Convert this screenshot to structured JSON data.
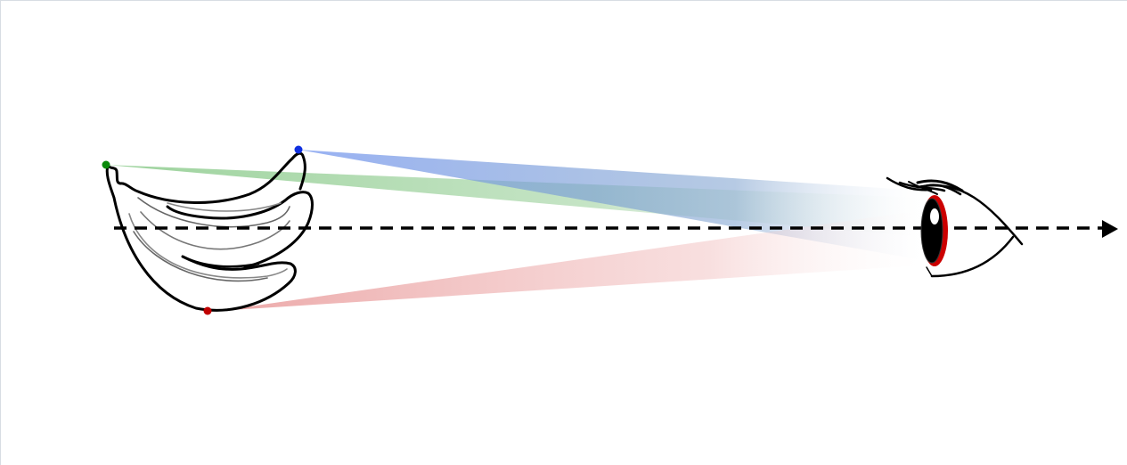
{
  "colors": {
    "green_point": "#0a8a0a",
    "blue_point": "#1030e0",
    "red_point": "#c00000",
    "green_beam": "#7cc47c",
    "blue_beam": "#7f9ef0",
    "red_beam": "#e58a8a",
    "iris_ring": "#cc0000",
    "outline": "#000000"
  },
  "icons": {
    "object": "banana-bunch",
    "observer": "eye",
    "axis": "dashed-arrow"
  }
}
